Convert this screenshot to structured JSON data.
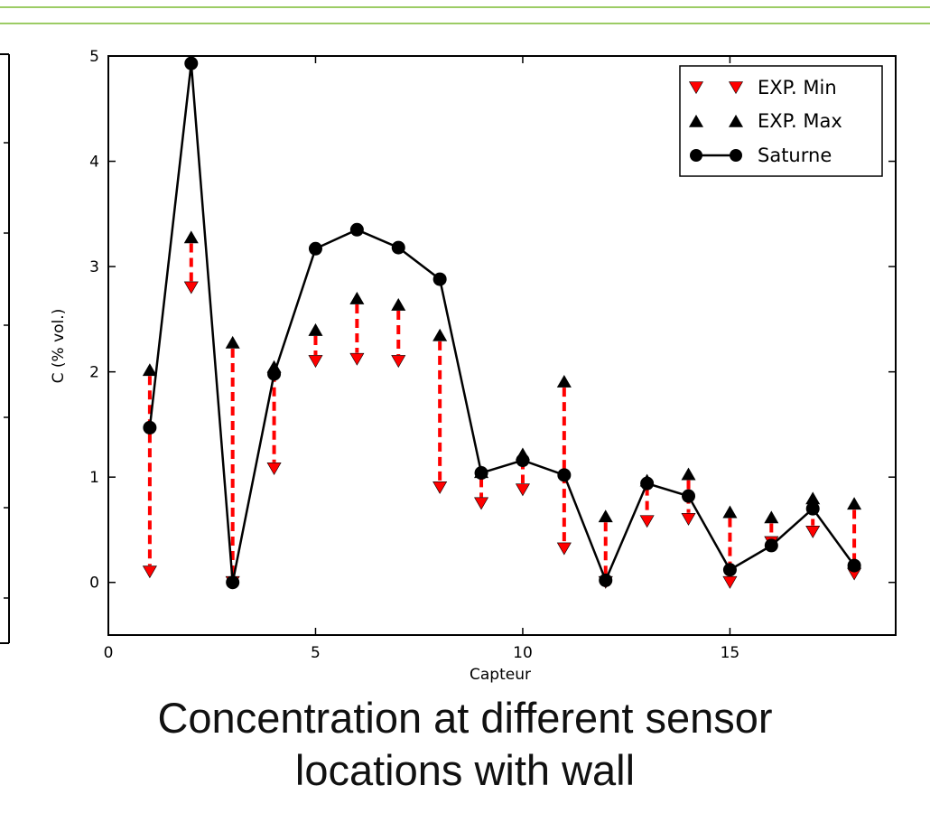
{
  "colors": {
    "header_rule": "#9ccc65",
    "min_marker": "#ff0000",
    "arrow": "#ff0000",
    "max_marker": "#000000",
    "saturne_line": "#000000"
  },
  "caption": {
    "line1": "Concentration at different sensor",
    "line2": "locations with wall"
  },
  "chart_data": {
    "type": "line",
    "xlabel": "Capteur",
    "ylabel": "C (% vol.)",
    "xlim": [
      0,
      19
    ],
    "ylim": [
      -0.5,
      5
    ],
    "x_ticks": [
      0,
      5,
      10,
      15
    ],
    "y_ticks": [
      0,
      1,
      2,
      3,
      4,
      5
    ],
    "legend_position": "top-right",
    "x": [
      1,
      2,
      3,
      4,
      5,
      6,
      7,
      8,
      9,
      10,
      11,
      12,
      13,
      14,
      15,
      16,
      17,
      18
    ],
    "series": [
      {
        "name": "EXP. Min",
        "marker": "triangle-down",
        "values": [
          0.1,
          2.8,
          0.0,
          1.08,
          2.1,
          2.12,
          2.1,
          0.9,
          0.75,
          0.88,
          0.32,
          0.0,
          0.58,
          0.6,
          0.0,
          0.38,
          0.48,
          0.08
        ]
      },
      {
        "name": "EXP. Max",
        "marker": "triangle-up",
        "values": [
          2.02,
          3.28,
          2.28,
          2.05,
          2.4,
          2.7,
          2.64,
          2.35,
          1.05,
          1.22,
          1.91,
          0.63,
          0.97,
          1.03,
          0.67,
          0.62,
          0.8,
          0.75
        ]
      },
      {
        "name": "Saturne",
        "marker": "circle",
        "values": [
          1.47,
          4.93,
          0.0,
          1.98,
          3.17,
          3.35,
          3.18,
          2.88,
          1.04,
          1.16,
          1.02,
          0.02,
          0.94,
          0.82,
          0.12,
          0.35,
          0.7,
          0.16
        ]
      }
    ]
  }
}
